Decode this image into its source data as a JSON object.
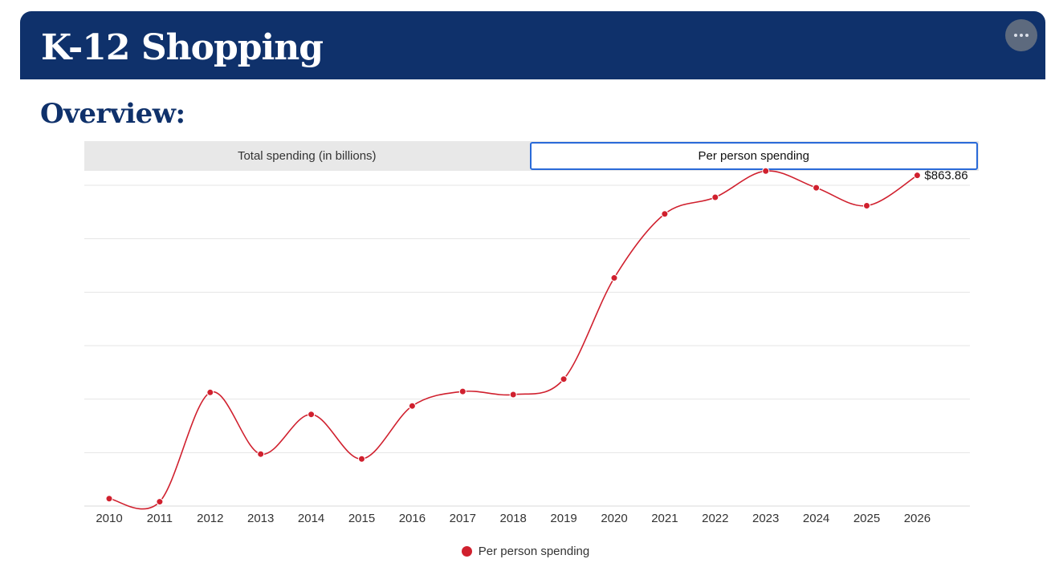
{
  "header": {
    "title": "K-12 Shopping"
  },
  "overview_heading": "Overview:",
  "tabs": [
    {
      "label": "Total spending (in billions)",
      "active": false
    },
    {
      "label": "Per person spending",
      "active": true
    }
  ],
  "colors": {
    "brand_navy": "#0f316b",
    "series_red": "#d0202e",
    "active_tab_border": "#2a6ad8"
  },
  "chart_data": {
    "type": "line",
    "x": [
      "2010",
      "2011",
      "2012",
      "2013",
      "2014",
      "2015",
      "2016",
      "2017",
      "2018",
      "2019",
      "2020",
      "2021",
      "2022",
      "2023",
      "2024",
      "2025",
      "2026"
    ],
    "series": [
      {
        "name": "Per person spending",
        "values": [
          410.4,
          406.1,
          559.4,
          472.9,
          528.6,
          466.1,
          540.4,
          560.7,
          556.4,
          578.1,
          720.0,
          809.8,
          833.1,
          870.0,
          846.5,
          821.3,
          863.86
        ]
      }
    ],
    "last_value_label": "$863.86",
    "ylim": [
      400,
      850
    ],
    "grid": true,
    "legend_position": "bottom-center",
    "xlabel": "",
    "ylabel": ""
  }
}
